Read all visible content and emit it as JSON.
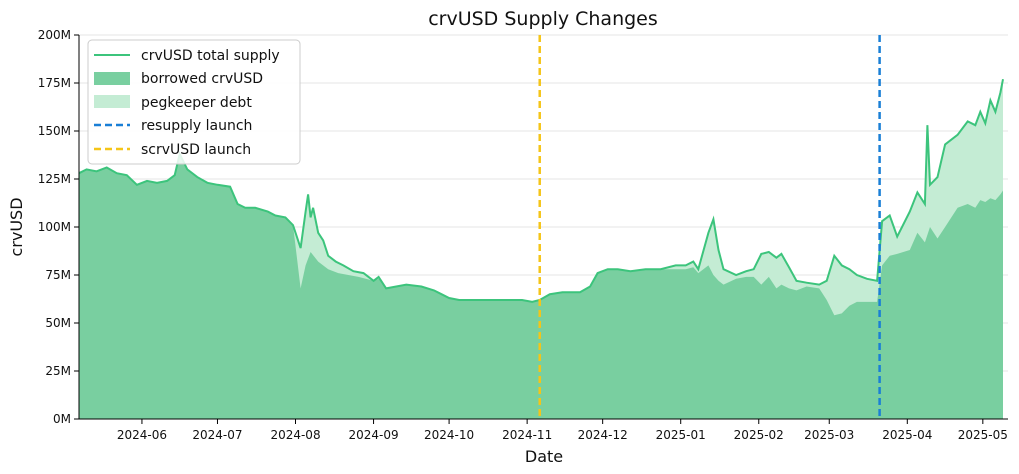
{
  "chart_data": {
    "type": "area",
    "title": "crvUSD Supply Changes",
    "xlabel": "Date",
    "ylabel": "crvUSD",
    "ylim": [
      0,
      200
    ],
    "y_unit": "M",
    "y_ticks": [
      0,
      25,
      50,
      75,
      100,
      125,
      150,
      175,
      200
    ],
    "y_tick_labels": [
      "0M",
      "25M",
      "50M",
      "75M",
      "100M",
      "125M",
      "150M",
      "175M",
      "200M"
    ],
    "xlim": [
      "2024-05-07",
      "2025-05-11"
    ],
    "x_ticks": [
      "2024-06-01",
      "2024-07-01",
      "2024-08-01",
      "2024-09-01",
      "2024-10-01",
      "2024-11-01",
      "2024-12-01",
      "2025-01-01",
      "2025-02-01",
      "2025-03-01",
      "2025-04-01",
      "2025-05-01"
    ],
    "x_tick_labels": [
      "2024-06",
      "2024-07",
      "2024-08",
      "2024-09",
      "2024-10",
      "2024-11",
      "2024-12",
      "2025-01",
      "2025-02",
      "2025-03",
      "2025-04",
      "2025-05"
    ],
    "grid": true,
    "legend_position": "top-left",
    "legend": [
      "crvUSD total supply",
      "borrowed crvUSD",
      "pegkeeper debt",
      "resupply launch",
      "scrvUSD launch"
    ],
    "colors": {
      "total_line": "#3cc47c",
      "borrowed_fill": "#79cfa0",
      "pegkeeper_fill": "#c4ecd4",
      "resupply": "#1a7fd6",
      "scrvusd": "#f5c518"
    },
    "vlines": [
      {
        "name": "scrvUSD launch",
        "date": "2024-11-06"
      },
      {
        "name": "resupply launch",
        "date": "2025-03-21"
      }
    ],
    "series": [
      {
        "name": "crvUSD total supply",
        "points": [
          [
            "2024-05-07",
            128
          ],
          [
            "2024-05-10",
            130
          ],
          [
            "2024-05-14",
            129
          ],
          [
            "2024-05-18",
            131
          ],
          [
            "2024-05-22",
            128
          ],
          [
            "2024-05-26",
            127
          ],
          [
            "2024-05-30",
            122
          ],
          [
            "2024-06-03",
            124
          ],
          [
            "2024-06-07",
            123
          ],
          [
            "2024-06-11",
            124
          ],
          [
            "2024-06-14",
            127
          ],
          [
            "2024-06-16",
            138
          ],
          [
            "2024-06-19",
            130
          ],
          [
            "2024-06-23",
            126
          ],
          [
            "2024-06-27",
            123
          ],
          [
            "2024-07-01",
            122
          ],
          [
            "2024-07-06",
            121
          ],
          [
            "2024-07-09",
            112
          ],
          [
            "2024-07-12",
            110
          ],
          [
            "2024-07-16",
            110
          ],
          [
            "2024-07-21",
            108
          ],
          [
            "2024-07-24",
            106
          ],
          [
            "2024-07-28",
            105
          ],
          [
            "2024-07-31",
            101
          ],
          [
            "2024-08-03",
            89
          ],
          [
            "2024-08-05",
            108
          ],
          [
            "2024-08-06",
            117
          ],
          [
            "2024-08-07",
            105
          ],
          [
            "2024-08-08",
            110
          ],
          [
            "2024-08-10",
            97
          ],
          [
            "2024-08-12",
            93
          ],
          [
            "2024-08-14",
            85
          ],
          [
            "2024-08-17",
            82
          ],
          [
            "2024-08-20",
            80
          ],
          [
            "2024-08-24",
            77
          ],
          [
            "2024-08-28",
            76
          ],
          [
            "2024-09-01",
            72
          ],
          [
            "2024-09-03",
            74
          ],
          [
            "2024-09-06",
            68
          ],
          [
            "2024-09-10",
            69
          ],
          [
            "2024-09-14",
            70
          ],
          [
            "2024-09-20",
            69
          ],
          [
            "2024-09-25",
            67
          ],
          [
            "2024-09-28",
            65
          ],
          [
            "2024-10-01",
            63
          ],
          [
            "2024-10-05",
            62
          ],
          [
            "2024-10-10",
            62
          ],
          [
            "2024-10-20",
            62
          ],
          [
            "2024-10-30",
            62
          ],
          [
            "2024-11-03",
            61
          ],
          [
            "2024-11-06",
            62
          ],
          [
            "2024-11-10",
            65
          ],
          [
            "2024-11-15",
            66
          ],
          [
            "2024-11-22",
            66
          ],
          [
            "2024-11-26",
            69
          ],
          [
            "2024-11-29",
            76
          ],
          [
            "2024-12-03",
            78
          ],
          [
            "2024-12-07",
            78
          ],
          [
            "2024-12-12",
            77
          ],
          [
            "2024-12-18",
            78
          ],
          [
            "2024-12-24",
            78
          ],
          [
            "2024-12-30",
            80
          ],
          [
            "2025-01-03",
            80
          ],
          [
            "2025-01-06",
            82
          ],
          [
            "2025-01-08",
            78
          ],
          [
            "2025-01-12",
            97
          ],
          [
            "2025-01-14",
            104
          ],
          [
            "2025-01-16",
            88
          ],
          [
            "2025-01-18",
            78
          ],
          [
            "2025-01-23",
            75
          ],
          [
            "2025-01-27",
            77
          ],
          [
            "2025-01-30",
            78
          ],
          [
            "2025-02-02",
            86
          ],
          [
            "2025-02-05",
            87
          ],
          [
            "2025-02-08",
            84
          ],
          [
            "2025-02-10",
            86
          ],
          [
            "2025-02-13",
            79
          ],
          [
            "2025-02-16",
            72
          ],
          [
            "2025-02-20",
            71
          ],
          [
            "2025-02-25",
            70
          ],
          [
            "2025-02-28",
            72
          ],
          [
            "2025-03-03",
            85
          ],
          [
            "2025-03-06",
            80
          ],
          [
            "2025-03-09",
            78
          ],
          [
            "2025-03-12",
            75
          ],
          [
            "2025-03-16",
            73
          ],
          [
            "2025-03-20",
            72
          ],
          [
            "2025-03-22",
            103
          ],
          [
            "2025-03-25",
            106
          ],
          [
            "2025-03-28",
            95
          ],
          [
            "2025-04-02",
            108
          ],
          [
            "2025-04-05",
            118
          ],
          [
            "2025-04-08",
            112
          ],
          [
            "2025-04-09",
            153
          ],
          [
            "2025-04-10",
            122
          ],
          [
            "2025-04-13",
            126
          ],
          [
            "2025-04-16",
            143
          ],
          [
            "2025-04-21",
            148
          ],
          [
            "2025-04-25",
            155
          ],
          [
            "2025-04-28",
            153
          ],
          [
            "2025-04-30",
            160
          ],
          [
            "2025-05-02",
            154
          ],
          [
            "2025-05-04",
            166
          ],
          [
            "2025-05-06",
            160
          ],
          [
            "2025-05-08",
            170
          ],
          [
            "2025-05-09",
            177
          ]
        ]
      },
      {
        "name": "borrowed crvUSD",
        "points": [
          [
            "2024-05-07",
            128
          ],
          [
            "2024-05-10",
            130
          ],
          [
            "2024-05-14",
            129
          ],
          [
            "2024-05-18",
            131
          ],
          [
            "2024-05-22",
            128
          ],
          [
            "2024-05-26",
            127
          ],
          [
            "2024-05-30",
            122
          ],
          [
            "2024-06-03",
            124
          ],
          [
            "2024-06-07",
            123
          ],
          [
            "2024-06-11",
            124
          ],
          [
            "2024-06-14",
            127
          ],
          [
            "2024-06-16",
            138
          ],
          [
            "2024-06-19",
            130
          ],
          [
            "2024-06-23",
            126
          ],
          [
            "2024-06-27",
            123
          ],
          [
            "2024-07-01",
            122
          ],
          [
            "2024-07-06",
            121
          ],
          [
            "2024-07-09",
            112
          ],
          [
            "2024-07-12",
            110
          ],
          [
            "2024-07-16",
            110
          ],
          [
            "2024-07-21",
            108
          ],
          [
            "2024-07-24",
            106
          ],
          [
            "2024-07-28",
            105
          ],
          [
            "2024-07-31",
            101
          ],
          [
            "2024-08-03",
            68
          ],
          [
            "2024-08-05",
            80
          ],
          [
            "2024-08-07",
            87
          ],
          [
            "2024-08-10",
            82
          ],
          [
            "2024-08-14",
            78
          ],
          [
            "2024-08-18",
            76
          ],
          [
            "2024-08-22",
            75
          ],
          [
            "2024-08-26",
            74
          ],
          [
            "2024-09-01",
            72
          ],
          [
            "2024-09-03",
            73
          ],
          [
            "2024-09-06",
            68
          ],
          [
            "2024-09-10",
            69
          ],
          [
            "2024-09-14",
            70
          ],
          [
            "2024-09-20",
            69
          ],
          [
            "2024-09-25",
            67
          ],
          [
            "2024-09-28",
            65
          ],
          [
            "2024-10-01",
            63
          ],
          [
            "2024-10-05",
            62
          ],
          [
            "2024-10-10",
            62
          ],
          [
            "2024-10-20",
            62
          ],
          [
            "2024-10-30",
            62
          ],
          [
            "2024-11-03",
            61
          ],
          [
            "2024-11-06",
            62
          ],
          [
            "2024-11-10",
            65
          ],
          [
            "2024-11-15",
            66
          ],
          [
            "2024-11-22",
            66
          ],
          [
            "2024-11-26",
            69
          ],
          [
            "2024-11-29",
            76
          ],
          [
            "2024-12-03",
            78
          ],
          [
            "2024-12-07",
            78
          ],
          [
            "2024-12-12",
            77
          ],
          [
            "2024-12-18",
            78
          ],
          [
            "2024-12-24",
            78
          ],
          [
            "2024-12-30",
            78
          ],
          [
            "2025-01-03",
            78
          ],
          [
            "2025-01-06",
            79
          ],
          [
            "2025-01-08",
            76
          ],
          [
            "2025-01-12",
            80
          ],
          [
            "2025-01-14",
            75
          ],
          [
            "2025-01-16",
            72
          ],
          [
            "2025-01-18",
            70
          ],
          [
            "2025-01-23",
            73
          ],
          [
            "2025-01-27",
            74
          ],
          [
            "2025-01-30",
            74
          ],
          [
            "2025-02-02",
            70
          ],
          [
            "2025-02-05",
            74
          ],
          [
            "2025-02-08",
            68
          ],
          [
            "2025-02-10",
            70
          ],
          [
            "2025-02-13",
            68
          ],
          [
            "2025-02-16",
            67
          ],
          [
            "2025-02-20",
            69
          ],
          [
            "2025-02-25",
            68
          ],
          [
            "2025-02-28",
            62
          ],
          [
            "2025-03-03",
            54
          ],
          [
            "2025-03-06",
            55
          ],
          [
            "2025-03-09",
            59
          ],
          [
            "2025-03-12",
            61
          ],
          [
            "2025-03-16",
            61
          ],
          [
            "2025-03-20",
            61
          ],
          [
            "2025-03-22",
            80
          ],
          [
            "2025-03-25",
            85
          ],
          [
            "2025-03-28",
            86
          ],
          [
            "2025-04-02",
            88
          ],
          [
            "2025-04-05",
            97
          ],
          [
            "2025-04-08",
            92
          ],
          [
            "2025-04-10",
            100
          ],
          [
            "2025-04-13",
            94
          ],
          [
            "2025-04-16",
            100
          ],
          [
            "2025-04-21",
            110
          ],
          [
            "2025-04-25",
            112
          ],
          [
            "2025-04-28",
            110
          ],
          [
            "2025-04-30",
            114
          ],
          [
            "2025-05-02",
            113
          ],
          [
            "2025-05-04",
            115
          ],
          [
            "2025-05-06",
            114
          ],
          [
            "2025-05-08",
            117
          ],
          [
            "2025-05-09",
            119
          ]
        ]
      }
    ]
  }
}
